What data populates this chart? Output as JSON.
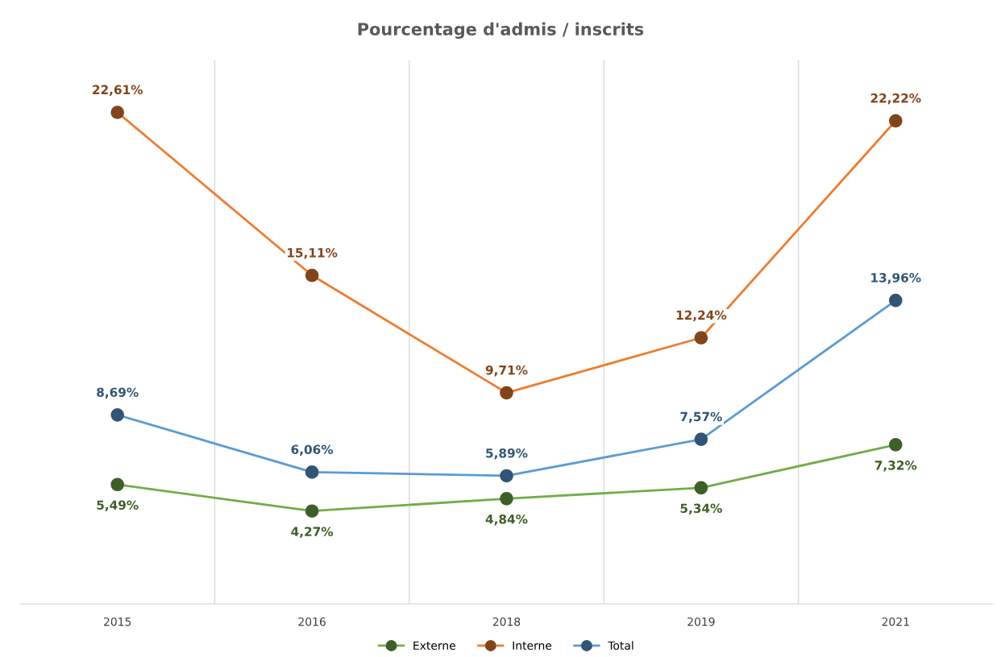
{
  "chart_data": {
    "type": "line",
    "title": "Pourcentage d'admis / inscrits",
    "categories": [
      "2015",
      "2016",
      "2018",
      "2019",
      "2021"
    ],
    "ylim": [
      0,
      25
    ],
    "tick_labels": "x",
    "grid": "x",
    "legend": "bottom",
    "marker": "circle",
    "line_style": "solid",
    "series": [
      {
        "name": "Externe",
        "color": "#70ad47",
        "values": [
          5.49,
          4.27,
          4.84,
          5.34,
          7.32
        ],
        "value_labels": [
          "5,49%",
          "4,27%",
          "4,84%",
          "5,34%",
          "7,32%"
        ]
      },
      {
        "name": "Interne",
        "color": "#ed7d31",
        "values": [
          22.61,
          15.11,
          9.71,
          12.24,
          22.22
        ],
        "value_labels": [
          "22,61%",
          "15,11%",
          "9,71%",
          "12,24%",
          "22,22%"
        ]
      },
      {
        "name": "Total",
        "color": "#5b9bd5",
        "values": [
          8.69,
          6.06,
          5.89,
          7.57,
          13.96
        ],
        "value_labels": [
          "8,69%",
          "6,06%",
          "5,89%",
          "7,57%",
          "13,96%"
        ]
      }
    ]
  }
}
